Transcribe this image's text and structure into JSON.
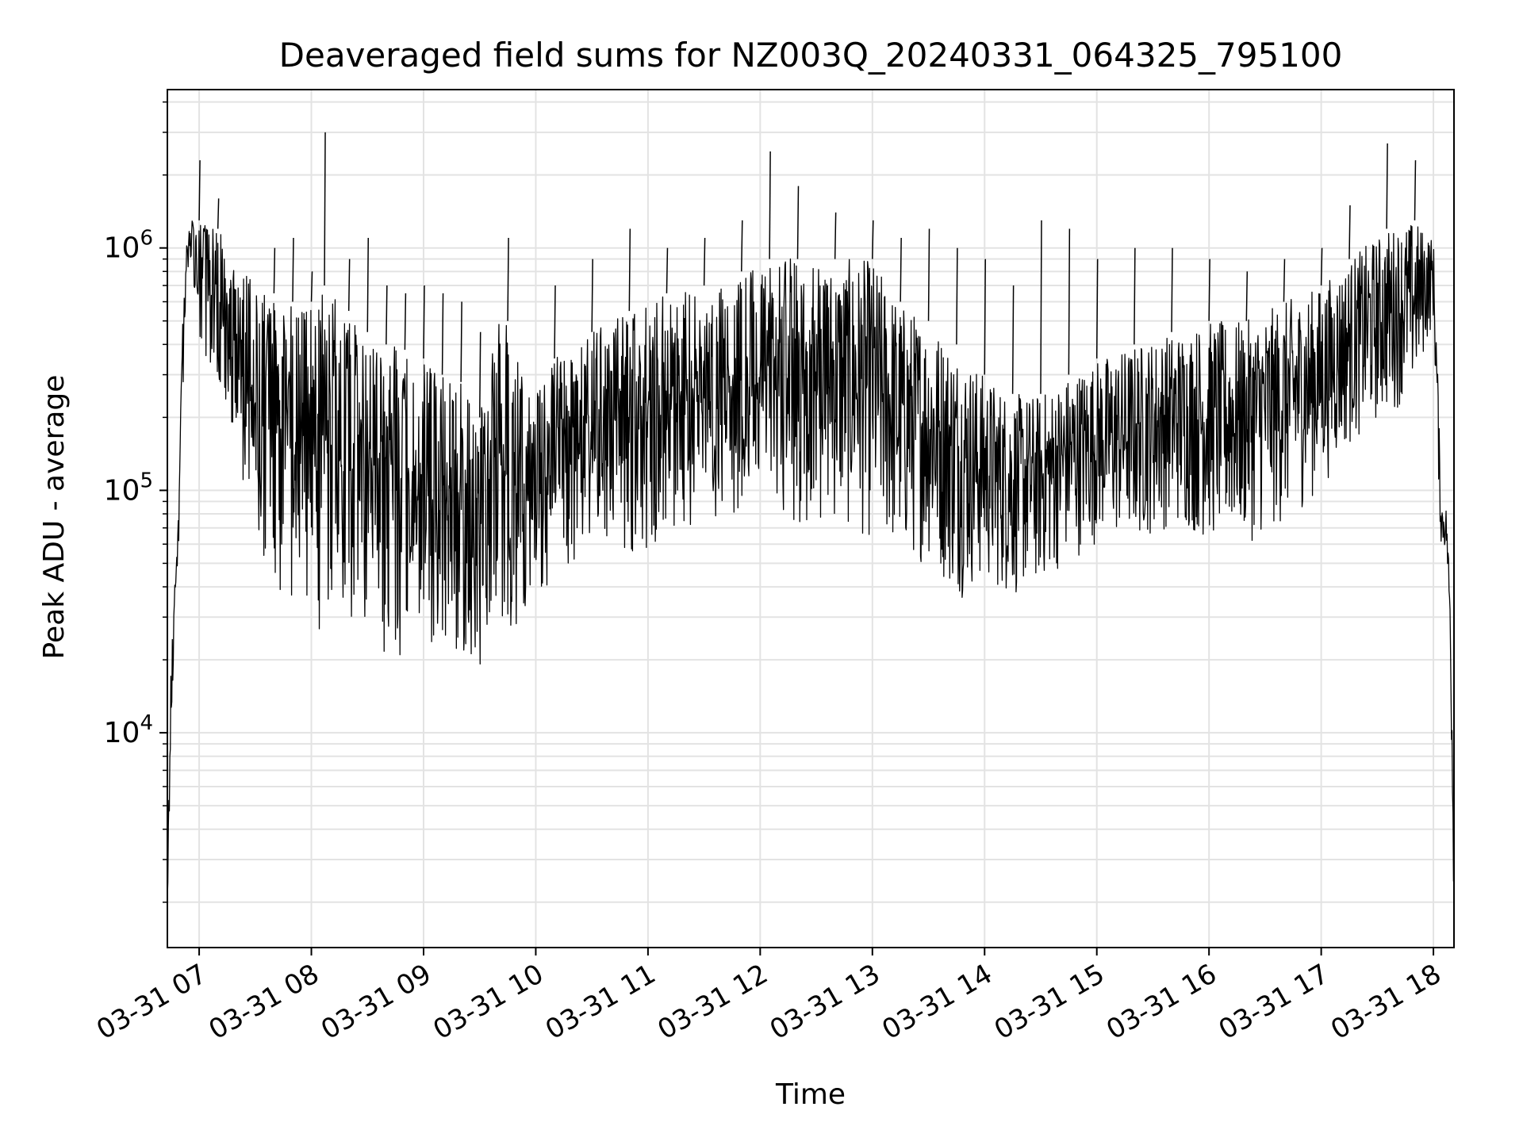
{
  "chart_data": {
    "type": "line",
    "title": "Deaveraged field sums for NZ003Q_20240331_064325_795100",
    "xlabel": "Time",
    "ylabel": "Peak ADU - average",
    "x_axis": {
      "kind": "datetime",
      "range": [
        "2024-03-31 06:43",
        "2024-03-31 18:11"
      ],
      "tick_labels": [
        "03-31 07",
        "03-31 08",
        "03-31 09",
        "03-31 10",
        "03-31 11",
        "03-31 12",
        "03-31 13",
        "03-31 14",
        "03-31 15",
        "03-31 16",
        "03-31 17",
        "03-31 18"
      ],
      "tick_label_rotation_deg": 30
    },
    "y_axis": {
      "scale": "log",
      "range": [
        1300,
        4500000
      ],
      "tick_labels": [
        {
          "base": "10",
          "exp": "4",
          "value": 10000
        },
        {
          "base": "10",
          "exp": "5",
          "value": 100000
        },
        {
          "base": "10",
          "exp": "6",
          "value": 1000000
        }
      ]
    },
    "grid": true,
    "series": [
      {
        "color": "#000000",
        "sampling": "envelope of a dense noisy signal: per time bin, low and high of the fluctuation band plus occasional spikes",
        "points": [
          {
            "t": "2024-03-31 06:43",
            "low": 2000,
            "high": 2500
          },
          {
            "t": "2024-03-31 06:45",
            "low": 8000,
            "high": 20000
          },
          {
            "t": "2024-03-31 06:47",
            "low": 35000,
            "high": 50000
          },
          {
            "t": "2024-03-31 06:49",
            "low": 55000,
            "high": 80000
          },
          {
            "t": "2024-03-31 06:51",
            "low": 200000,
            "high": 500000
          },
          {
            "t": "2024-03-31 06:53",
            "low": 700000,
            "high": 1000000
          },
          {
            "t": "2024-03-31 06:55",
            "low": 900000,
            "high": 1300000
          },
          {
            "t": "2024-03-31 07:00",
            "low": 400000,
            "high": 1300000,
            "spike": 2300000
          },
          {
            "t": "2024-03-31 07:10",
            "low": 280000,
            "high": 1200000,
            "spike": 1600000
          },
          {
            "t": "2024-03-31 07:20",
            "low": 150000,
            "high": 900000
          },
          {
            "t": "2024-03-31 07:30",
            "low": 60000,
            "high": 700000
          },
          {
            "t": "2024-03-31 07:40",
            "low": 40000,
            "high": 650000,
            "spike": 1000000
          },
          {
            "t": "2024-03-31 07:50",
            "low": 32000,
            "high": 600000,
            "spike": 1100000
          },
          {
            "t": "2024-03-31 08:00",
            "low": 28000,
            "high": 600000,
            "spike": 800000
          },
          {
            "t": "2024-03-31 08:07",
            "low": 26000,
            "high": 700000,
            "spike": 3000000
          },
          {
            "t": "2024-03-31 08:20",
            "low": 23000,
            "high": 550000,
            "spike": 900000
          },
          {
            "t": "2024-03-31 08:30",
            "low": 22000,
            "high": 450000,
            "spike": 1100000
          },
          {
            "t": "2024-03-31 08:40",
            "low": 18000,
            "high": 400000,
            "spike": 700000
          },
          {
            "t": "2024-03-31 08:50",
            "low": 20000,
            "high": 380000,
            "spike": 650000
          },
          {
            "t": "2024-03-31 09:00",
            "low": 22000,
            "high": 350000,
            "spike": 700000
          },
          {
            "t": "2024-03-31 09:10",
            "low": 20000,
            "high": 300000,
            "spike": 650000
          },
          {
            "t": "2024-03-31 09:20",
            "low": 17000,
            "high": 280000,
            "spike": 600000
          },
          {
            "t": "2024-03-31 09:30",
            "low": 18000,
            "high": 200000,
            "spike": 450000
          },
          {
            "t": "2024-03-31 09:40",
            "low": 28000,
            "high": 500000
          },
          {
            "t": "2024-03-31 09:45",
            "low": 22000,
            "high": 500000,
            "spike": 1100000
          },
          {
            "t": "2024-03-31 09:55",
            "low": 30000,
            "high": 250000
          },
          {
            "t": "2024-03-31 10:10",
            "low": 45000,
            "high": 350000,
            "spike": 700000
          },
          {
            "t": "2024-03-31 10:30",
            "low": 50000,
            "high": 450000,
            "spike": 900000
          },
          {
            "t": "2024-03-31 10:50",
            "low": 55000,
            "high": 550000,
            "spike": 1200000
          },
          {
            "t": "2024-03-31 11:10",
            "low": 60000,
            "high": 650000,
            "spike": 1000000
          },
          {
            "t": "2024-03-31 11:30",
            "low": 70000,
            "high": 700000,
            "spike": 1100000
          },
          {
            "t": "2024-03-31 11:50",
            "low": 80000,
            "high": 800000,
            "spike": 1300000
          },
          {
            "t": "2024-03-31 12:05",
            "low": 80000,
            "high": 900000,
            "spike": 2500000
          },
          {
            "t": "2024-03-31 12:20",
            "low": 70000,
            "high": 900000,
            "spike": 1800000
          },
          {
            "t": "2024-03-31 12:40",
            "low": 70000,
            "high": 900000,
            "spike": 1400000
          },
          {
            "t": "2024-03-31 13:00",
            "low": 60000,
            "high": 900000,
            "spike": 1300000
          },
          {
            "t": "2024-03-31 13:15",
            "low": 50000,
            "high": 600000,
            "spike": 1100000
          },
          {
            "t": "2024-03-31 13:30",
            "low": 50000,
            "high": 500000,
            "spike": 1200000
          },
          {
            "t": "2024-03-31 13:45",
            "low": 35000,
            "high": 400000,
            "spike": 1000000
          },
          {
            "t": "2024-03-31 14:00",
            "low": 40000,
            "high": 300000,
            "spike": 900000
          },
          {
            "t": "2024-03-31 14:15",
            "low": 35000,
            "high": 250000,
            "spike": 700000
          },
          {
            "t": "2024-03-31 14:30",
            "low": 40000,
            "high": 250000,
            "spike": 1300000
          },
          {
            "t": "2024-03-31 14:45",
            "low": 50000,
            "high": 300000,
            "spike": 1200000
          },
          {
            "t": "2024-03-31 15:00",
            "low": 60000,
            "high": 350000,
            "spike": 900000
          },
          {
            "t": "2024-03-31 15:20",
            "low": 60000,
            "high": 400000,
            "spike": 1000000
          },
          {
            "t": "2024-03-31 15:40",
            "low": 70000,
            "high": 450000,
            "spike": 1000000
          },
          {
            "t": "2024-03-31 16:00",
            "low": 60000,
            "high": 500000,
            "spike": 900000
          },
          {
            "t": "2024-03-31 16:20",
            "low": 60000,
            "high": 500000,
            "spike": 800000
          },
          {
            "t": "2024-03-31 16:40",
            "low": 70000,
            "high": 600000,
            "spike": 900000
          },
          {
            "t": "2024-03-31 17:00",
            "low": 100000,
            "high": 700000,
            "spike": 1000000
          },
          {
            "t": "2024-03-31 17:15",
            "low": 150000,
            "high": 900000,
            "spike": 1500000
          },
          {
            "t": "2024-03-31 17:35",
            "low": 200000,
            "high": 1200000,
            "spike": 2700000
          },
          {
            "t": "2024-03-31 17:50",
            "low": 250000,
            "high": 1300000,
            "spike": 2300000
          },
          {
            "t": "2024-03-31 18:00",
            "low": 500000,
            "high": 1100000
          },
          {
            "t": "2024-03-31 18:02",
            "low": 150000,
            "high": 400000
          },
          {
            "t": "2024-03-31 18:04",
            "low": 60000,
            "high": 90000
          },
          {
            "t": "2024-03-31 18:07",
            "low": 55000,
            "high": 85000
          },
          {
            "t": "2024-03-31 18:09",
            "low": 20000,
            "high": 40000
          },
          {
            "t": "2024-03-31 18:11",
            "low": 1500,
            "high": 5000
          }
        ]
      }
    ]
  }
}
